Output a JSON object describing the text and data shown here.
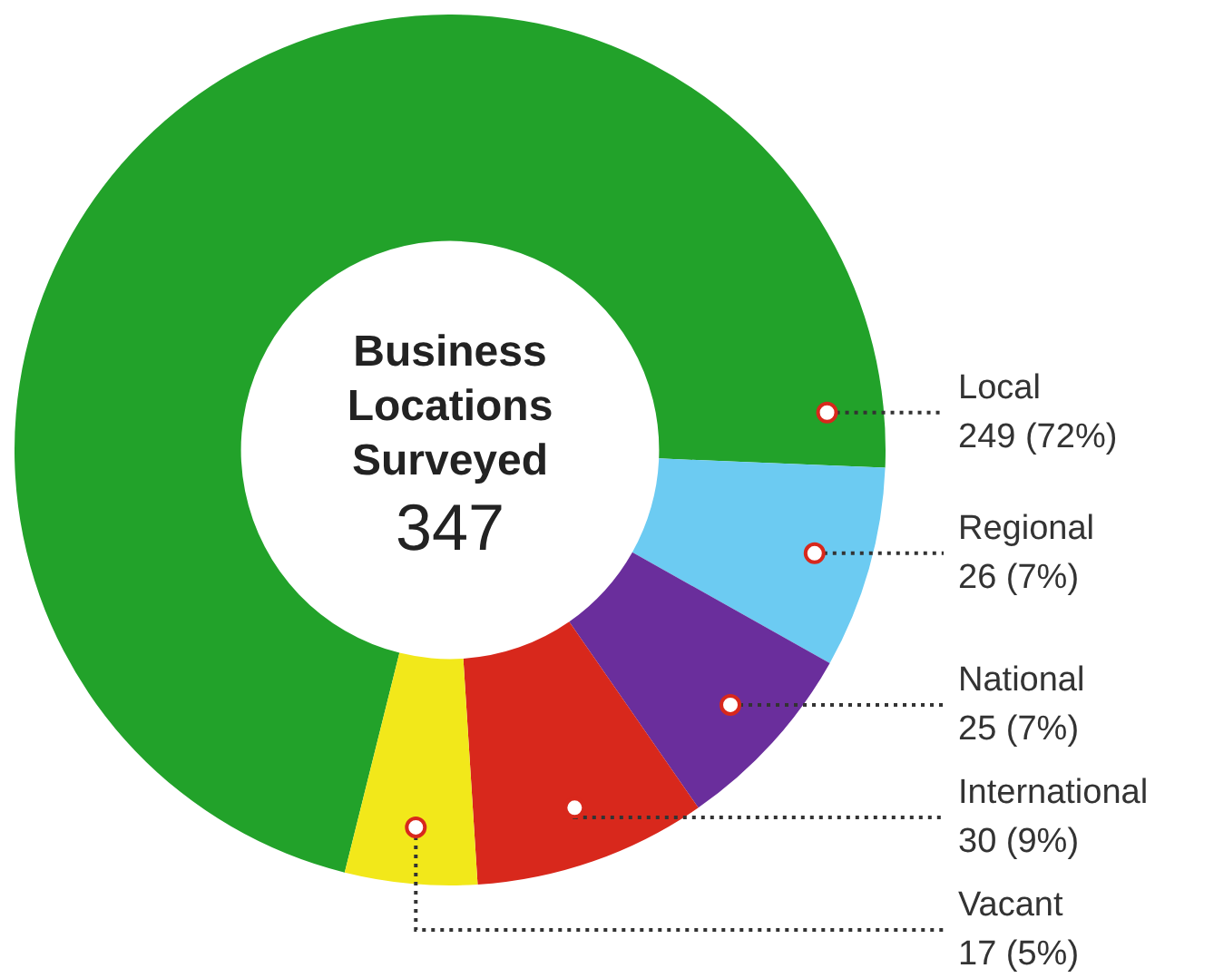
{
  "chart_data": {
    "type": "donut",
    "title": "Business Locations Surveyed",
    "annotations": [
      "347"
    ],
    "categories": [
      "Local",
      "Regional",
      "National",
      "International",
      "Vacant"
    ],
    "values": [
      249,
      26,
      25,
      30,
      17
    ],
    "colors": [
      "#22a22a",
      "#6ccbf2",
      "#6a2e9c",
      "#d8281c",
      "#f2e81a"
    ],
    "value_labels": [
      "249 (72%)",
      "26 (7%)",
      "25 (7%)",
      "30 (9%)",
      "17 (5%)"
    ],
    "legend": false
  }
}
